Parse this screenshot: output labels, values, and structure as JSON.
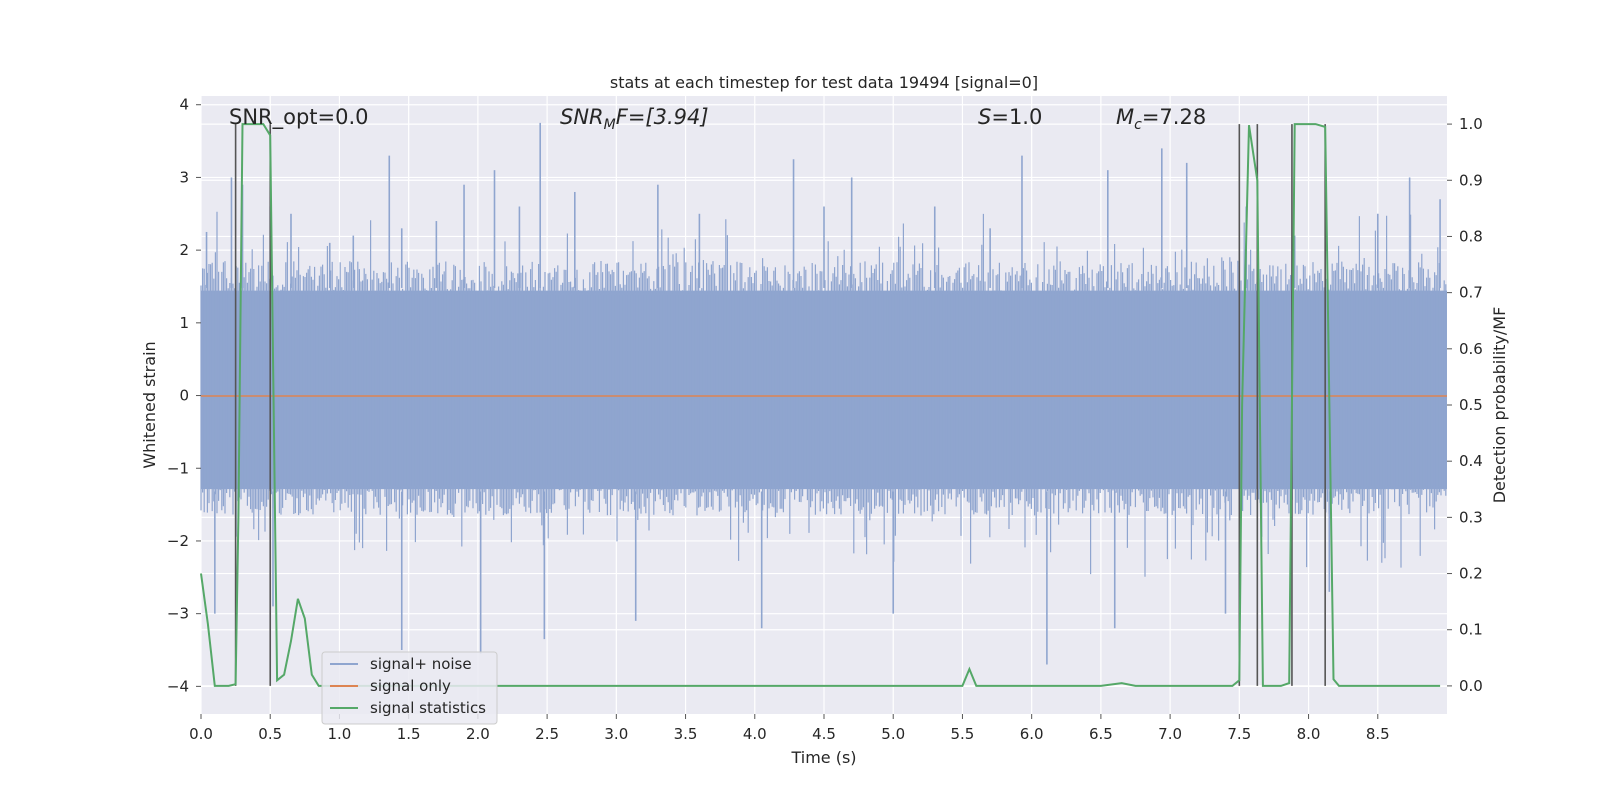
{
  "chart_data": {
    "type": "line",
    "title": "stats at each timestep for test data 19494 [signal=0]",
    "xlabel": "Time (s)",
    "ylabel_left": "Whitened strain",
    "ylabel_right": "Detection probability/MF",
    "xlim": [
      0.0,
      9.0
    ],
    "ylim_left": [
      -4.38,
      4.12
    ],
    "ylim_right": [
      -0.05,
      1.05
    ],
    "x_ticks": [
      "0.0",
      "0.5",
      "1.0",
      "1.5",
      "2.0",
      "2.5",
      "3.0",
      "3.5",
      "4.0",
      "4.5",
      "5.0",
      "5.5",
      "6.0",
      "6.5",
      "7.0",
      "7.5",
      "8.0",
      "8.5"
    ],
    "y_left_ticks": [
      "4",
      "3",
      "2",
      "1",
      "0",
      "−1",
      "−2",
      "−3",
      "−4"
    ],
    "y_right_ticks": [
      "1.0",
      "0.9",
      "0.8",
      "0.7",
      "0.6",
      "0.5",
      "0.4",
      "0.3",
      "0.2",
      "0.1",
      "0.0"
    ],
    "grid": true,
    "legend_position": "lower-left",
    "annotations": {
      "snr_opt": "SNR_opt=0.0",
      "snr_mf_main": "SNR",
      "snr_mf_sub": "M",
      "snr_mf_tail": "F=[3.94]",
      "s_main": "S",
      "s_tail": "=1.0",
      "mc_main": "M",
      "mc_sub": "c",
      "mc_tail": "=7.28"
    },
    "series": [
      {
        "name": "signal+ noise",
        "color": "#8fa5cf",
        "kind": "noise-band",
        "envelope_typical": [
          -1.65,
          1.85
        ],
        "extreme_samples": [
          {
            "x": 0.04,
            "y": 2.25
          },
          {
            "x": 0.1,
            "y": -3.0
          },
          {
            "x": 0.22,
            "y": 3.0
          },
          {
            "x": 0.3,
            "y": 2.9
          },
          {
            "x": 0.5,
            "y": 2.6
          },
          {
            "x": 0.52,
            "y": -2.9
          },
          {
            "x": 0.65,
            "y": 2.5
          },
          {
            "x": 0.93,
            "y": 2.1
          },
          {
            "x": 1.1,
            "y": 2.2
          },
          {
            "x": 1.36,
            "y": 3.3
          },
          {
            "x": 1.45,
            "y": 2.3
          },
          {
            "x": 1.45,
            "y": -3.5
          },
          {
            "x": 1.7,
            "y": 2.4
          },
          {
            "x": 1.9,
            "y": 2.9
          },
          {
            "x": 2.02,
            "y": -3.55
          },
          {
            "x": 2.12,
            "y": 3.1
          },
          {
            "x": 2.3,
            "y": 2.6
          },
          {
            "x": 2.45,
            "y": 3.75
          },
          {
            "x": 2.48,
            "y": -3.35
          },
          {
            "x": 2.7,
            "y": 2.8
          },
          {
            "x": 3.14,
            "y": -3.1
          },
          {
            "x": 3.3,
            "y": 2.9
          },
          {
            "x": 3.6,
            "y": 2.5
          },
          {
            "x": 4.05,
            "y": -3.2
          },
          {
            "x": 4.28,
            "y": 3.25
          },
          {
            "x": 4.5,
            "y": 2.6
          },
          {
            "x": 4.7,
            "y": 3.0
          },
          {
            "x": 5.0,
            "y": -3.0
          },
          {
            "x": 5.3,
            "y": 2.6
          },
          {
            "x": 5.7,
            "y": 2.3
          },
          {
            "x": 5.93,
            "y": 3.3
          },
          {
            "x": 6.11,
            "y": -3.7
          },
          {
            "x": 6.55,
            "y": 3.1
          },
          {
            "x": 6.6,
            "y": -3.2
          },
          {
            "x": 6.94,
            "y": 3.4
          },
          {
            "x": 7.12,
            "y": 3.2
          },
          {
            "x": 7.4,
            "y": -3.0
          },
          {
            "x": 7.55,
            "y": 2.6
          },
          {
            "x": 7.9,
            "y": 2.2
          },
          {
            "x": 8.15,
            "y": -2.7
          },
          {
            "x": 8.5,
            "y": 2.5
          },
          {
            "x": 8.73,
            "y": 3.0
          },
          {
            "x": 8.95,
            "y": 2.7
          }
        ]
      },
      {
        "name": "signal only",
        "color": "#dd8452",
        "x": [
          0.0,
          9.0
        ],
        "y": [
          0.0,
          0.0
        ]
      },
      {
        "name": "signal statistics",
        "color": "#55a868",
        "axis": "right",
        "x": [
          0.0,
          0.05,
          0.1,
          0.2,
          0.25,
          0.27,
          0.3,
          0.4,
          0.45,
          0.5,
          0.55,
          0.6,
          0.65,
          0.7,
          0.75,
          0.8,
          0.85,
          0.9,
          1.0,
          5.5,
          5.55,
          5.6,
          5.7,
          6.5,
          6.65,
          6.75,
          7.45,
          7.5,
          7.52,
          7.57,
          7.63,
          7.67,
          7.8,
          7.86,
          7.9,
          8.05,
          8.12,
          8.18,
          8.22,
          8.8,
          8.95
        ],
        "y": [
          0.2,
          0.11,
          0.0,
          0.0,
          0.003,
          0.3,
          1.0,
          1.0,
          1.0,
          0.98,
          0.01,
          0.02,
          0.08,
          0.155,
          0.12,
          0.02,
          0.0,
          0.0,
          0.0,
          0.0,
          0.03,
          0.0,
          0.0,
          0.0,
          0.005,
          0.0,
          0.0,
          0.01,
          0.5,
          0.998,
          0.9,
          0.0,
          0.0,
          0.005,
          1.0,
          1.0,
          0.995,
          0.012,
          0.0,
          0.0,
          0.0
        ]
      }
    ],
    "vertical_markers": [
      {
        "x": 0.25,
        "y_top": 1.0,
        "y_bottom": 0.0
      },
      {
        "x": 0.5,
        "y_top": 1.0,
        "y_bottom": 0.0
      },
      {
        "x": 7.5,
        "y_top": 1.0,
        "y_bottom": 0.0
      },
      {
        "x": 7.63,
        "y_top": 1.0,
        "y_bottom": 0.0
      },
      {
        "x": 7.88,
        "y_top": 1.0,
        "y_bottom": 0.0
      },
      {
        "x": 8.12,
        "y_top": 1.0,
        "y_bottom": 0.0
      }
    ]
  }
}
